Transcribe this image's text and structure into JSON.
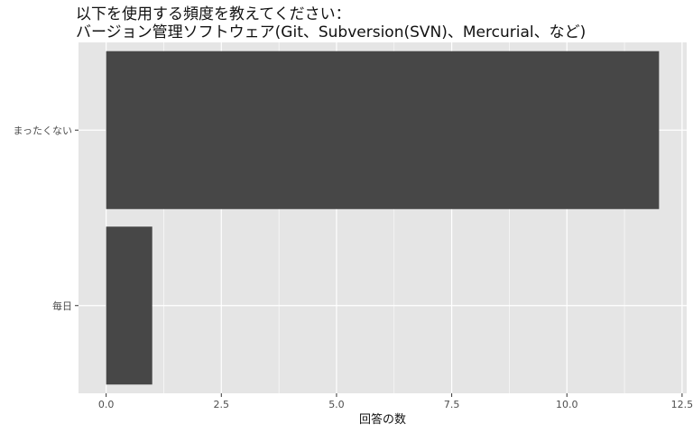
{
  "chart_data": {
    "type": "bar",
    "orientation": "horizontal",
    "title_lines": [
      "以下を使用する頻度を教えてください：",
      "バージョン管理ソフトウェア(Git、Subversion(SVN)、Mercurial、など)"
    ],
    "xlabel": "回答の数",
    "ylabel": "",
    "categories": [
      "まったくない",
      "毎日"
    ],
    "values": [
      12,
      1
    ],
    "xlim": [
      -0.6,
      12.6
    ],
    "xticks": [
      "0.0",
      "2.5",
      "5.0",
      "7.5",
      "10.0",
      "12.5"
    ],
    "grid": true,
    "legend": "none",
    "colors": {
      "panel": "#e5e5e5",
      "grid": "#ffffff",
      "bar": "#474747"
    }
  }
}
